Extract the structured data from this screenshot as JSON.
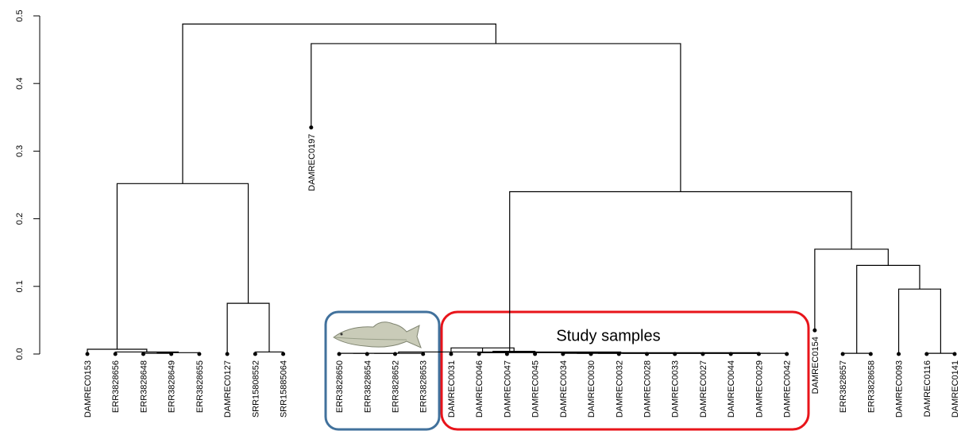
{
  "chart_data": {
    "type": "dendrogram",
    "labels": [
      "DAMREC0153",
      "ERR3828656",
      "ERR3828648",
      "ERR3828649",
      "ERR3828655",
      "DAMREC0127",
      "SRR15808552",
      "SRR15885064",
      "DAMREC0197",
      "ERR3828650",
      "ERR3828654",
      "ERR3828652",
      "ERR3828653",
      "DAMREC0031",
      "DAMREC0046",
      "DAMREC0047",
      "DAMREC0045",
      "DAMREC0034",
      "DAMREC0030",
      "DAMREC0032",
      "DAMREC0028",
      "DAMREC0033",
      "DAMREC0027",
      "DAMREC0044",
      "DAMREC0029",
      "DAMREC0042",
      "DAMREC0154",
      "ERR3828657",
      "ERR3828658",
      "DAMREC0093",
      "DAMREC0116",
      "DAMREC0141"
    ],
    "leaf_heights": [
      0,
      0,
      0,
      0,
      0,
      0,
      0,
      0,
      0.335,
      0,
      0,
      0,
      0,
      0,
      0,
      0,
      0,
      0,
      0,
      0,
      0,
      0,
      0,
      0,
      0,
      0,
      0.035,
      0,
      0,
      0,
      0,
      0
    ],
    "merges": [
      [
        -3,
        -4,
        0.001
      ],
      [
        1,
        -5,
        0.002
      ],
      [
        -2,
        2,
        0.003
      ],
      [
        -1,
        3,
        0.007
      ],
      [
        -7,
        -8,
        0.003
      ],
      [
        -6,
        5,
        0.075
      ],
      [
        4,
        6,
        0.252
      ],
      [
        -10,
        -11,
        0.001
      ],
      [
        8,
        -12,
        0.001
      ],
      [
        9,
        -13,
        0.001
      ],
      [
        -15,
        -16,
        0.002
      ],
      [
        11,
        -17,
        0.004
      ],
      [
        -14,
        12,
        0.009
      ],
      [
        -18,
        -19,
        0.001
      ],
      [
        14,
        -20,
        0.001
      ],
      [
        15,
        -21,
        0.001
      ],
      [
        16,
        -22,
        0.001
      ],
      [
        17,
        -23,
        0.001
      ],
      [
        18,
        -24,
        0.001
      ],
      [
        19,
        -25,
        0.001
      ],
      [
        20,
        -26,
        0.001
      ],
      [
        13,
        21,
        0.002
      ],
      [
        10,
        22,
        0.003
      ],
      [
        -28,
        -29,
        0.001
      ],
      [
        -31,
        -32,
        0.001
      ],
      [
        -30,
        25,
        0.096
      ],
      [
        24,
        26,
        0.131
      ],
      [
        -27,
        27,
        0.155
      ],
      [
        23,
        28,
        0.24
      ],
      [
        -9,
        29,
        0.459
      ],
      [
        7,
        30,
        0.488
      ]
    ],
    "ylim": [
      0,
      0.5
    ],
    "yticks": [
      {
        "value": 0,
        "label": "0.0"
      },
      0.1,
      0.2,
      0.3,
      0.4,
      0.5
    ],
    "annotation": "Study samples",
    "color": "#000000"
  }
}
